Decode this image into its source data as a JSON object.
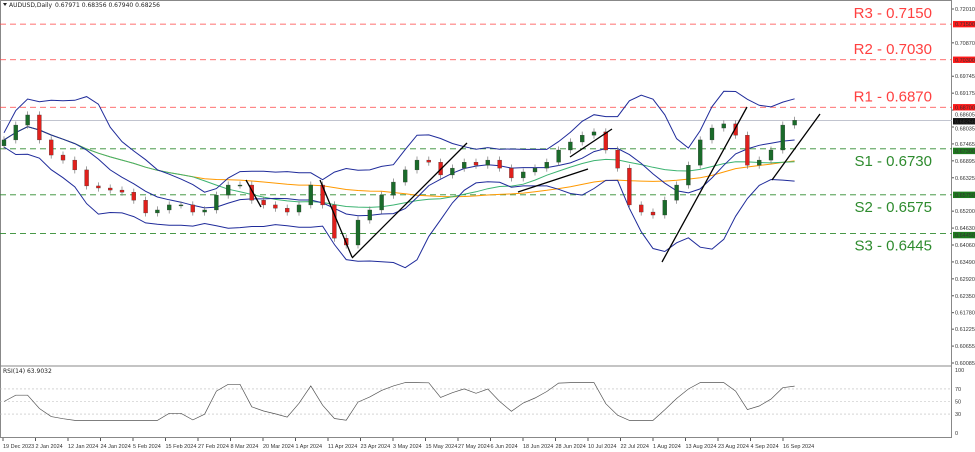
{
  "header": {
    "symbol": "AUDUSD,Daily",
    "ohlc": "0.67971 0.68356 0.67940 0.68256"
  },
  "rsi": {
    "label": "RSI(14) 63.9032",
    "levels": [
      100,
      70,
      50,
      30,
      0
    ]
  },
  "colors": {
    "bull": "#1a6b2a",
    "bear": "#e0201c",
    "resistance": "#ff4040",
    "support": "#2e8b2e",
    "bands": "#1f2b9a",
    "ma_fast": "#3cb371",
    "ma_slow": "#ff9900",
    "trendline": "#000000"
  },
  "levels": [
    {
      "name": "R3",
      "label": "R3 - 0.7150",
      "price": 0.715,
      "axis": "0.71500",
      "type": "resistance"
    },
    {
      "name": "R2",
      "label": "R2 - 0.7030",
      "price": 0.703,
      "axis": "0.70300",
      "type": "resistance"
    },
    {
      "name": "R1",
      "label": "R1 - 0.6870",
      "price": 0.687,
      "axis": "0.68700",
      "type": "resistance"
    },
    {
      "name": "S1",
      "label": "S1 - 0.6730",
      "price": 0.673,
      "axis": "0.67300",
      "type": "support"
    },
    {
      "name": "S2",
      "label": "S2 - 0.6575",
      "price": 0.6575,
      "axis": "0.65750",
      "type": "support"
    },
    {
      "name": "S3",
      "label": "S3 - 0.6445",
      "price": 0.6445,
      "axis": "0.64450",
      "type": "support"
    }
  ],
  "current_price": {
    "price": 0.68256,
    "axis": "0.68256"
  },
  "chart_data": {
    "type": "candlestick",
    "title": "AUDUSD,Daily",
    "ylim": [
      0.60085,
      0.7201
    ],
    "price_ticks": [
      "0.72010",
      "0.70870",
      "0.69745",
      "0.69175",
      "0.68605",
      "0.68035",
      "0.67465",
      "0.66895",
      "0.66325",
      "0.65200",
      "0.64630",
      "0.64060",
      "0.63490",
      "0.62920",
      "0.62350",
      "0.61780",
      "0.61225",
      "0.60655",
      "0.60085"
    ],
    "date_ticks": [
      "19 Dec 2023",
      "2 Jan 2024",
      "12 Jan 2024",
      "24 Jan 2024",
      "5 Feb 2024",
      "15 Feb 2024",
      "27 Feb 2024",
      "8 Mar 2024",
      "20 Mar 2024",
      "1 Apr 2024",
      "11 Apr 2024",
      "23 Apr 2024",
      "3 May 2024",
      "15 May 2024",
      "27 May 2024",
      "6 Jun 2024",
      "18 Jun 2024",
      "28 Jun 2024",
      "10 Jul 2024",
      "22 Jul 2024",
      "1 Aug 2024",
      "13 Aug 2024",
      "23 Aug 2024",
      "4 Sep 2024",
      "16 Sep 2024"
    ],
    "closes": [
      0.676,
      0.681,
      0.6844,
      0.676,
      0.6709,
      0.6692,
      0.6659,
      0.6605,
      0.6598,
      0.6591,
      0.6584,
      0.6557,
      0.6514,
      0.6524,
      0.6541,
      0.6541,
      0.6517,
      0.6524,
      0.6574,
      0.6608,
      0.6608,
      0.6557,
      0.6541,
      0.653,
      0.6517,
      0.6541,
      0.6608,
      0.6541,
      0.6429,
      0.6406,
      0.649,
      0.6524,
      0.6574,
      0.6618,
      0.6659,
      0.6692,
      0.6685,
      0.6642,
      0.6665,
      0.6685,
      0.6675,
      0.6692,
      0.6665,
      0.6632,
      0.6652,
      0.6665,
      0.6685,
      0.6726,
      0.6753,
      0.6776,
      0.6787,
      0.6726,
      0.6665,
      0.6541,
      0.6517,
      0.6507,
      0.6557,
      0.6608,
      0.6675,
      0.676,
      0.68,
      0.6814,
      0.6776,
      0.6675,
      0.6692,
      0.6726,
      0.681,
      0.6826
    ],
    "indicators": [
      "Bollinger Bands",
      "Moving Average (fast)",
      "Moving Average (slow)",
      "RSI(14)"
    ]
  }
}
